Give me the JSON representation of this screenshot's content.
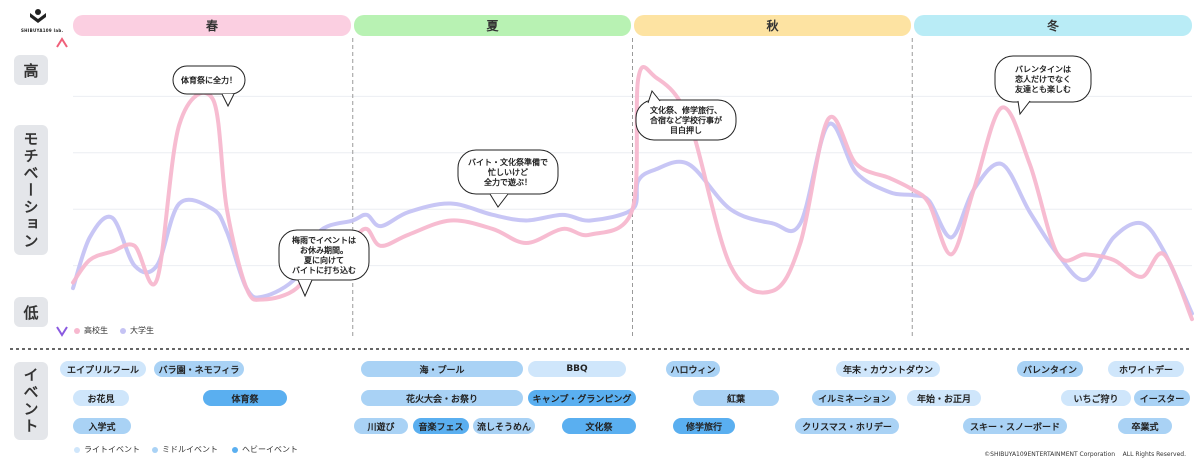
{
  "logo": {
    "text": "SHIBUYA109 lab."
  },
  "yaxis": {
    "high": "高",
    "title": "モチベーション",
    "low": "低"
  },
  "event_section_label": "イベント",
  "seasons": [
    "春",
    "夏",
    "秋",
    "冬"
  ],
  "chart_data": {
    "type": "line",
    "title": "",
    "ylabel": "モチベーション",
    "y_high_label": "高",
    "y_low_label": "低",
    "x_categories": [
      "春",
      "夏",
      "秋",
      "冬"
    ],
    "ylim": [
      0,
      100
    ],
    "series": [
      {
        "name": "高校生",
        "color": "#f7b8cf",
        "x": [
          0,
          0.06,
          0.14,
          0.22,
          0.3,
          0.38,
          0.5,
          0.55,
          0.62,
          0.68,
          0.8,
          0.88,
          1.0,
          1.05,
          1.1,
          1.2,
          1.35,
          1.5,
          1.62,
          1.75,
          1.85,
          2.0,
          2.02,
          2.08,
          2.2,
          2.35,
          2.5,
          2.6,
          2.7,
          2.8,
          2.92,
          3.0,
          3.06,
          3.14,
          3.22,
          3.32,
          3.42,
          3.52,
          3.62,
          3.72,
          3.82,
          3.9,
          4.0
        ],
        "y": [
          14,
          22,
          25,
          27,
          15,
          70,
          79,
          40,
          12,
          8,
          12,
          25,
          30,
          33,
          27,
          31,
          36,
          33,
          28,
          33,
          31,
          40,
          86,
          87,
          72,
          20,
          11,
          28,
          72,
          56,
          51,
          47,
          42,
          24,
          47,
          76,
          56,
          24,
          24,
          22,
          16,
          24,
          1
        ]
      },
      {
        "name": "大学生",
        "color": "#c5c3f4",
        "x": [
          0,
          0.06,
          0.14,
          0.22,
          0.3,
          0.38,
          0.5,
          0.55,
          0.62,
          0.68,
          0.8,
          0.88,
          1.0,
          1.05,
          1.1,
          1.2,
          1.35,
          1.5,
          1.62,
          1.75,
          1.85,
          2.0,
          2.02,
          2.08,
          2.2,
          2.35,
          2.5,
          2.6,
          2.7,
          2.8,
          2.92,
          3.0,
          3.06,
          3.14,
          3.22,
          3.32,
          3.42,
          3.52,
          3.62,
          3.72,
          3.82,
          3.9,
          4.0
        ],
        "y": [
          12,
          30,
          37,
          20,
          20,
          42,
          40,
          32,
          12,
          9,
          16,
          32,
          36,
          38,
          34,
          39,
          42,
          38,
          36,
          38,
          36,
          40,
          50,
          54,
          56,
          40,
          35,
          35,
          70,
          53,
          46,
          45,
          43,
          30,
          47,
          56,
          39,
          24,
          15,
          30,
          35,
          25,
          3
        ]
      }
    ],
    "legend": {
      "position": "bottom-left",
      "entries": [
        "高校生",
        "大学生"
      ]
    },
    "grid": true,
    "annotations": [
      {
        "lines": [
          "体育祭に全力！"
        ]
      },
      {
        "lines": [
          "梅雨でイベントは",
          "お休み期間。",
          "夏に向けて",
          "バイトに打ち込む"
        ]
      },
      {
        "lines": [
          "バイト・文化祭準備で",
          "忙しいけど",
          "全力で遊ぶ！"
        ]
      },
      {
        "lines": [
          "文化祭、修学旅行、",
          "合宿など学校行事が",
          "目白押し"
        ]
      },
      {
        "lines": [
          "バレンタインは",
          "恋人だけでなく",
          "友達とも楽しむ"
        ]
      }
    ]
  },
  "events": [
    {
      "label": "エイプリルフール",
      "level": "light"
    },
    {
      "label": "バラ園・ネモフィラ",
      "level": "mid"
    },
    {
      "label": "お花見",
      "level": "light"
    },
    {
      "label": "体育祭",
      "level": "heavy"
    },
    {
      "label": "入学式",
      "level": "mid"
    },
    {
      "label": "海・プール",
      "level": "mid"
    },
    {
      "label": "BBQ",
      "level": "light"
    },
    {
      "label": "花火大会・お祭り",
      "level": "mid"
    },
    {
      "label": "キャンプ・グランピング",
      "level": "heavy"
    },
    {
      "label": "川遊び",
      "level": "mid"
    },
    {
      "label": "音楽フェス",
      "level": "heavy"
    },
    {
      "label": "流しそうめん",
      "level": "mid"
    },
    {
      "label": "文化祭",
      "level": "heavy"
    },
    {
      "label": "ハロウィン",
      "level": "mid"
    },
    {
      "label": "紅葉",
      "level": "mid"
    },
    {
      "label": "修学旅行",
      "level": "heavy"
    },
    {
      "label": "年末・カウントダウン",
      "level": "light"
    },
    {
      "label": "イルミネーション",
      "level": "mid"
    },
    {
      "label": "年始・お正月",
      "level": "light"
    },
    {
      "label": "クリスマス・ホリデー",
      "level": "mid"
    },
    {
      "label": "バレンタイン",
      "level": "mid"
    },
    {
      "label": "ホワイトデー",
      "level": "light"
    },
    {
      "label": "いちご狩り",
      "level": "light"
    },
    {
      "label": "イースター",
      "level": "mid"
    },
    {
      "label": "スキー・スノーボード",
      "level": "mid"
    },
    {
      "label": "卒業式",
      "level": "mid"
    }
  ],
  "event_legend": [
    {
      "label": "ライトイベント",
      "color": "#cfe6fb"
    },
    {
      "label": "ミドルイベント",
      "color": "#a9d2f5"
    },
    {
      "label": "ヘビーイベント",
      "color": "#5aaff0"
    }
  ],
  "colors": {
    "spring": "#fbcfe1",
    "summer": "#b8f2b3",
    "autumn": "#fde3a2",
    "winter": "#b9ecf6"
  },
  "copyright": "©SHIBUYA109ENTERTAINMENT Corporation    ALL Rights Reserved."
}
